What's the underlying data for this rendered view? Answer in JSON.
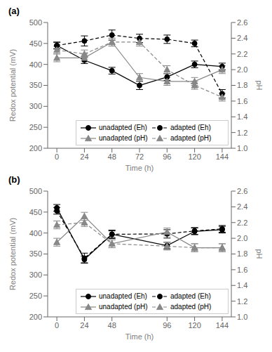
{
  "chart_data": [
    {
      "type": "line",
      "title": "(a)",
      "x_label": "Time (h)",
      "y_label": "Redox potential (mV)",
      "y2_label": "pH",
      "x": [
        0,
        24,
        48,
        72,
        96,
        120,
        144
      ],
      "xlim": [
        -8,
        152
      ],
      "xticks": [
        0,
        24,
        48,
        72,
        96,
        120,
        144
      ],
      "ylim": [
        200,
        500
      ],
      "yticks": [
        200,
        250,
        300,
        350,
        400,
        450,
        500
      ],
      "y2lim": [
        1.0,
        2.6
      ],
      "y2ticks": [
        {
          "value": 1.0,
          "label": "1.0"
        },
        1.2,
        1.4,
        1.6,
        1.8,
        {
          "value": 2.0,
          "label": "2.0"
        },
        2.2,
        2.4,
        2.6
      ],
      "legend": "lower right",
      "series": [
        {
          "name": "unadapted (Eh)",
          "color": "#000000",
          "marker": "circle",
          "line_style": "solid",
          "values": [
            445,
            410,
            385,
            350,
            370,
            400,
            395
          ],
          "errors": [
            8,
            8,
            8,
            10,
            8,
            8,
            8
          ]
        },
        {
          "name": "adapted (Eh)",
          "color": "#000000",
          "marker": "circle",
          "line_style": "dashed",
          "values": [
            445,
            456,
            470,
            462,
            460,
            450,
            330
          ],
          "errors": [
            8,
            12,
            12,
            10,
            10,
            8,
            10
          ]
        },
        {
          "name": "unadapted (pH)",
          "color": "#888888",
          "marker": "triangle",
          "line_style": "solid",
          "axis": "y2",
          "values": [
            2.15,
            2.15,
            2.35,
            1.9,
            1.85,
            1.85,
            2.0
          ],
          "errors": [
            0.05,
            0.05,
            0.05,
            0.05,
            0.05,
            0.05,
            0.05
          ]
        },
        {
          "name": "adapted (pH)",
          "color": "#888888",
          "marker": "triangle",
          "line_style": "dashed",
          "axis": "y2",
          "values": [
            2.25,
            2.2,
            2.35,
            2.35,
            2.0,
            1.8,
            1.65
          ],
          "errors": [
            0.05,
            0.05,
            0.05,
            0.05,
            0.05,
            0.05,
            0.05
          ]
        }
      ]
    },
    {
      "type": "line",
      "title": "(b)",
      "x_label": "Time (h)",
      "y_label": "Redox potential (mV)",
      "y2_label": "pH",
      "x": [
        0,
        24,
        48,
        96,
        120,
        144
      ],
      "xlim": [
        -8,
        152
      ],
      "xticks": [
        0,
        24,
        48,
        96,
        120,
        144
      ],
      "ylim": [
        200,
        500
      ],
      "yticks": [
        200,
        250,
        300,
        350,
        400,
        450,
        500
      ],
      "y2lim": [
        1.0,
        2.6
      ],
      "y2ticks": [
        {
          "value": 1.0,
          "label": "1.0"
        },
        1.2,
        1.4,
        1.6,
        1.8,
        {
          "value": 2.0,
          "label": "2.0"
        },
        2.2,
        2.4,
        2.6
      ],
      "legend": "lower right",
      "series": [
        {
          "name": "unadapted (Eh)",
          "color": "#000000",
          "marker": "circle",
          "line_style": "solid",
          "values": [
            460,
            337,
            397,
            370,
            404,
            408
          ],
          "errors": [
            8,
            8,
            10,
            8,
            8,
            8
          ]
        },
        {
          "name": "adapted (Eh)",
          "color": "#000000",
          "marker": "circle",
          "line_style": "dashed",
          "values": [
            453,
            340,
            397,
            398,
            405,
            410
          ],
          "errors": [
            8,
            12,
            8,
            10,
            8,
            8
          ]
        },
        {
          "name": "unadapted (pH)",
          "color": "#888888",
          "marker": "triangle",
          "line_style": "solid",
          "axis": "y2",
          "values": [
            1.95,
            2.28,
            1.93,
            2.08,
            1.88,
            1.88
          ],
          "errors": [
            0.05,
            0.05,
            0.05,
            0.05,
            0.05,
            0.05
          ]
        },
        {
          "name": "adapted (pH)",
          "color": "#888888",
          "marker": "triangle",
          "line_style": "dashed",
          "axis": "y2",
          "values": [
            2.17,
            2.2,
            1.93,
            1.9,
            1.88,
            1.88
          ],
          "errors": [
            0.05,
            0.05,
            0.05,
            0.05,
            0.05,
            0.05
          ]
        }
      ]
    }
  ]
}
